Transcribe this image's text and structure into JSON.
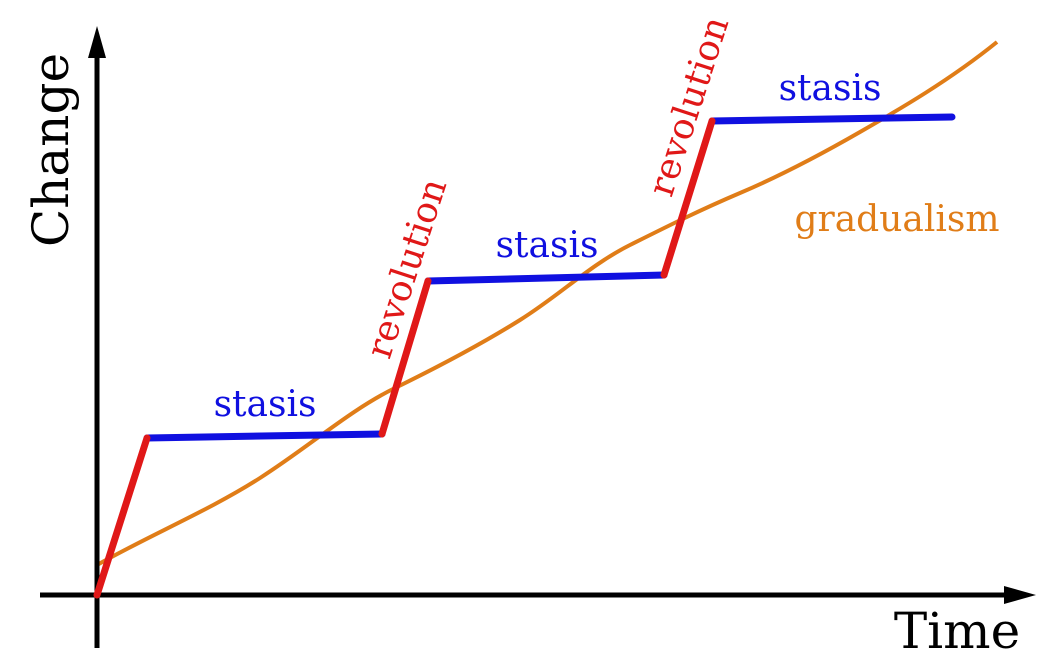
{
  "axes": {
    "y_label": "Change",
    "x_label": "Time"
  },
  "labels": {
    "stasis": [
      "stasis",
      "stasis",
      "stasis"
    ],
    "revolution": [
      "revolution",
      "revolution"
    ],
    "gradualism": "gradualism"
  }
}
